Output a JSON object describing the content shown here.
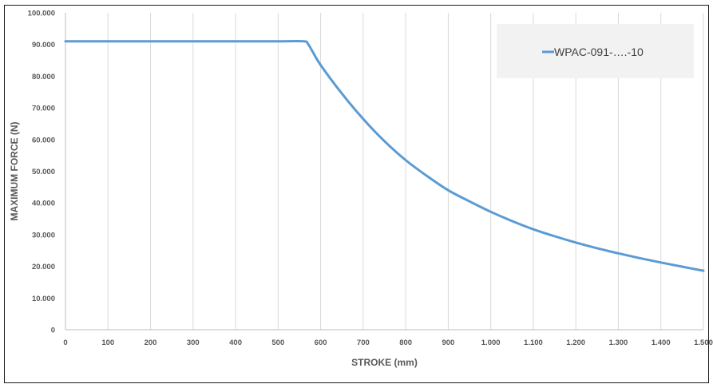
{
  "chart_data": {
    "type": "line",
    "title": "",
    "xlabel": "STROKE (mm)",
    "ylabel": "MAXIMUM FORCE (N)",
    "xlim": [
      0,
      1500
    ],
    "ylim": [
      0,
      100000
    ],
    "x_ticks": [
      0,
      100,
      200,
      300,
      400,
      500,
      600,
      700,
      800,
      900,
      1000,
      1100,
      1200,
      1300,
      1400,
      1500
    ],
    "x_tick_labels": [
      "0",
      "100",
      "200",
      "300",
      "400",
      "500",
      "600",
      "700",
      "800",
      "900",
      "1.000",
      "1.100",
      "1.200",
      "1.300",
      "1.400",
      "1.500"
    ],
    "y_ticks": [
      0,
      10000,
      20000,
      30000,
      40000,
      50000,
      60000,
      70000,
      80000,
      90000,
      100000
    ],
    "y_tick_labels": [
      "0",
      "10.000",
      "20.000",
      "30.000",
      "40.000",
      "50.000",
      "60.000",
      "70.000",
      "80.000",
      "90.000",
      "100.000"
    ],
    "grid": "vertical",
    "legend_position": "top-right",
    "series": [
      {
        "name": "WPAC-091-….-10",
        "color": "#5b9bd5",
        "x": [
          0,
          100,
          200,
          300,
          400,
          500,
          560,
          570,
          580,
          600,
          650,
          700,
          750,
          800,
          850,
          900,
          950,
          1000,
          1050,
          1100,
          1150,
          1200,
          1250,
          1300,
          1350,
          1400,
          1450,
          1500
        ],
        "y": [
          91000,
          91000,
          91000,
          91000,
          91000,
          91000,
          91000,
          90200,
          88000,
          83500,
          74500,
          66500,
          59500,
          53500,
          48500,
          44000,
          40500,
          37200,
          34300,
          31700,
          29500,
          27500,
          25700,
          24100,
          22600,
          21200,
          19900,
          18600
        ]
      }
    ]
  }
}
